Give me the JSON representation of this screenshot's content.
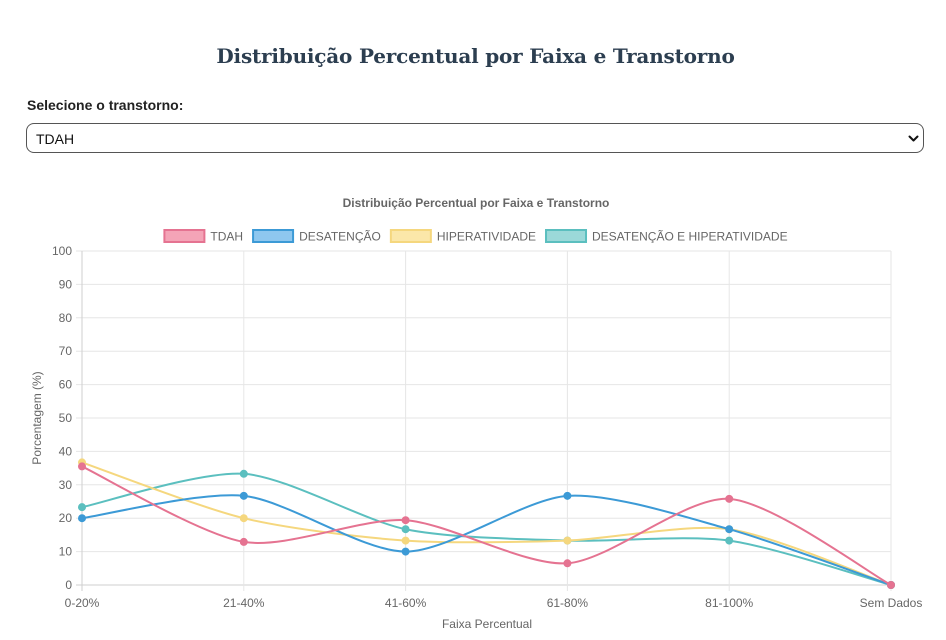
{
  "page": {
    "title": "Distribuição Percentual por Faixa e Transtorno",
    "select_label": "Selecione o transtorno:",
    "select_value": "TDAH"
  },
  "chart_data": {
    "type": "line",
    "title": "Distribuição Percentual por Faixa e Transtorno",
    "xlabel": "Faixa Percentual",
    "ylabel": "Porcentagem (%)",
    "ylim": [
      0,
      100
    ],
    "yticks": [
      0,
      10,
      20,
      30,
      40,
      50,
      60,
      70,
      80,
      90,
      100
    ],
    "grid": true,
    "legend_position": "top",
    "categories": [
      "0-20%",
      "21-40%",
      "41-60%",
      "61-80%",
      "81-100%",
      "Sem Dados"
    ],
    "series": [
      {
        "name": "TDAH",
        "color": "#e57391",
        "fill": "#f4a4b7",
        "values": [
          35.5,
          12.9,
          19.4,
          6.5,
          25.8,
          0
        ]
      },
      {
        "name": "DESATENÇÃO",
        "color": "#3c9ad6",
        "fill": "#8ec7ef",
        "values": [
          20,
          26.7,
          10,
          26.7,
          16.7,
          0
        ]
      },
      {
        "name": "HIPERATIVIDADE",
        "color": "#f5d77e",
        "fill": "#fbe7a9",
        "values": [
          36.7,
          20,
          13.3,
          13.3,
          16.7,
          0
        ]
      },
      {
        "name": "DESATENÇÃO E HIPERATIVIDADE",
        "color": "#5bbfbf",
        "fill": "#9bd9d9",
        "values": [
          23.3,
          33.3,
          16.7,
          13.3,
          13.3,
          0
        ]
      }
    ]
  }
}
